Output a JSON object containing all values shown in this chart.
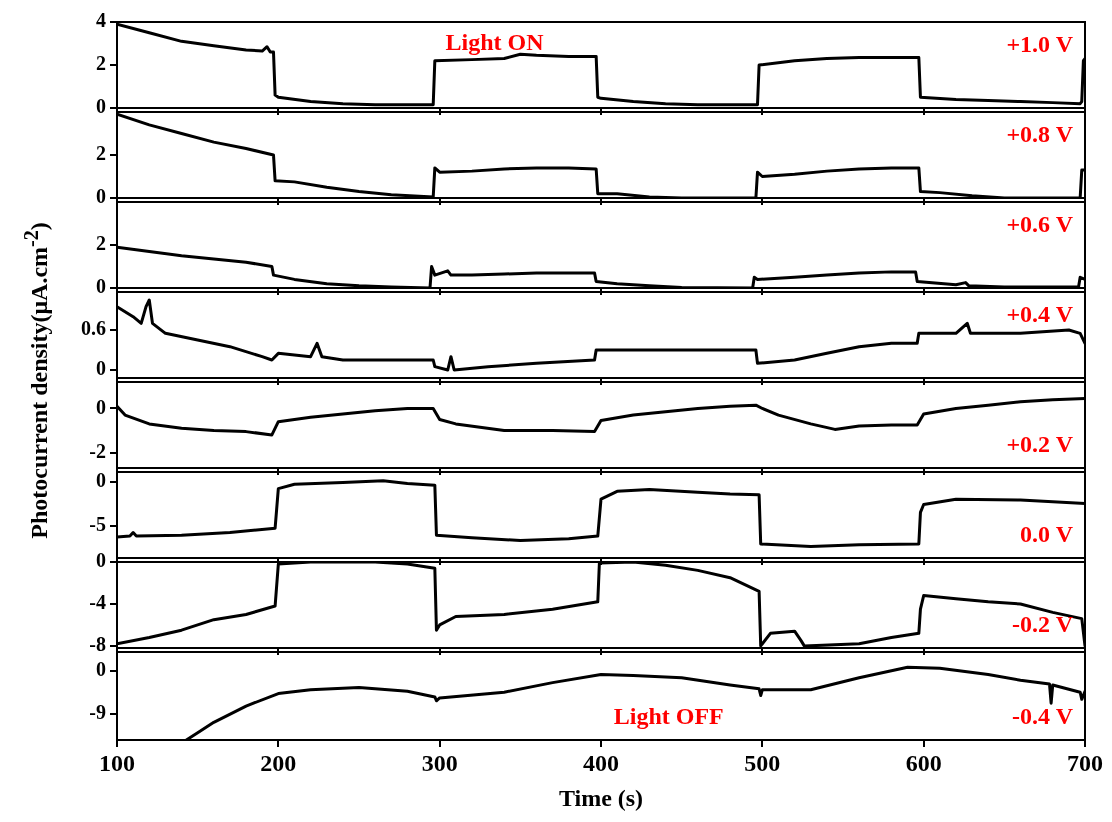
{
  "chart_data": [
    {
      "type": "line",
      "ylabel": "Photocurrent density(μA.cm$^{-2}$)",
      "annotations": [
        "Light ON",
        "+1.0 V"
      ],
      "xlim": [
        100,
        700
      ],
      "xticks": [
        100,
        200,
        300,
        400,
        500,
        600,
        700
      ],
      "ylim": [
        0,
        4
      ],
      "yticks": [
        0,
        2,
        4
      ],
      "tick_labels": "y",
      "marker": "none",
      "line_style": "solid",
      "series": [
        {
          "color": "#000000",
          "x": [
            100,
            120,
            140,
            160,
            180,
            190,
            193,
            195,
            197,
            198,
            200,
            220,
            240,
            260,
            280,
            296,
            297,
            320,
            340,
            350,
            360,
            380,
            397,
            398,
            400,
            420,
            440,
            460,
            480,
            497,
            498,
            520,
            540,
            560,
            580,
            597,
            598,
            620,
            640,
            660,
            680,
            697,
            698,
            699,
            700
          ],
          "values": [
            3.9,
            3.5,
            3.1,
            2.9,
            2.7,
            2.65,
            2.85,
            2.6,
            2.6,
            0.6,
            0.5,
            0.3,
            0.2,
            0.15,
            0.15,
            0.15,
            2.2,
            2.25,
            2.3,
            2.5,
            2.45,
            2.4,
            2.4,
            0.5,
            0.45,
            0.3,
            0.2,
            0.15,
            0.15,
            0.15,
            2.0,
            2.2,
            2.3,
            2.35,
            2.35,
            2.35,
            0.5,
            0.4,
            0.35,
            0.3,
            0.25,
            0.2,
            0.3,
            2.2,
            2.3
          ]
        }
      ]
    },
    {
      "type": "line",
      "annotations": [
        "+0.8 V"
      ],
      "xlim": [
        100,
        700
      ],
      "xticks": [
        100,
        200,
        300,
        400,
        500,
        600,
        700
      ],
      "ylim": [
        0,
        4
      ],
      "yticks": [
        0,
        2
      ],
      "tick_labels": "y",
      "marker": "none",
      "line_style": "solid",
      "series": [
        {
          "color": "#000000",
          "x": [
            100,
            120,
            140,
            160,
            180,
            197,
            198,
            210,
            230,
            250,
            270,
            296,
            297,
            300,
            320,
            340,
            360,
            380,
            397,
            398,
            410,
            430,
            450,
            496,
            497,
            500,
            520,
            540,
            560,
            580,
            597,
            598,
            610,
            630,
            650,
            697,
            698,
            700
          ],
          "values": [
            3.9,
            3.4,
            3.0,
            2.6,
            2.3,
            2.0,
            0.8,
            0.75,
            0.5,
            0.3,
            0.15,
            0.05,
            1.4,
            1.2,
            1.25,
            1.35,
            1.4,
            1.4,
            1.35,
            0.2,
            0.2,
            0.05,
            0,
            0,
            1.2,
            1.0,
            1.1,
            1.25,
            1.35,
            1.4,
            1.4,
            0.3,
            0.25,
            0.1,
            0,
            0,
            1.3,
            1.3
          ]
        }
      ]
    },
    {
      "type": "line",
      "annotations": [
        "+0.6 V"
      ],
      "xlim": [
        100,
        700
      ],
      "xticks": [
        100,
        200,
        300,
        400,
        500,
        600,
        700
      ],
      "ylim": [
        0,
        4
      ],
      "yticks": [
        0,
        2
      ],
      "tick_labels": "y",
      "marker": "none",
      "line_style": "solid",
      "series": [
        {
          "color": "#000000",
          "x": [
            100,
            120,
            140,
            160,
            180,
            196,
            197,
            210,
            230,
            250,
            270,
            294,
            295,
            297,
            305,
            307,
            320,
            340,
            360,
            380,
            396,
            397,
            410,
            430,
            450,
            494,
            495,
            497,
            520,
            540,
            560,
            580,
            595,
            596,
            620,
            626,
            628,
            650,
            696,
            697,
            700
          ],
          "values": [
            1.9,
            1.7,
            1.5,
            1.35,
            1.2,
            1.0,
            0.6,
            0.4,
            0.2,
            0.1,
            0.05,
            0,
            1.0,
            0.6,
            0.8,
            0.6,
            0.6,
            0.65,
            0.7,
            0.7,
            0.7,
            0.3,
            0.2,
            0.1,
            0.02,
            0,
            0.5,
            0.4,
            0.5,
            0.6,
            0.7,
            0.75,
            0.75,
            0.3,
            0.15,
            0.25,
            0.1,
            0.05,
            0.05,
            0.5,
            0.4
          ]
        }
      ]
    },
    {
      "type": "line",
      "annotations": [
        "+0.4 V"
      ],
      "xlim": [
        100,
        700
      ],
      "xticks": [
        100,
        200,
        300,
        400,
        500,
        600,
        700
      ],
      "ylim": [
        -0.12,
        1.17
      ],
      "yticks": [
        0,
        0.6
      ],
      "tick_labels": "y",
      "marker": "none",
      "line_style": "solid",
      "series": [
        {
          "color": "#000000",
          "x": [
            100,
            110,
            115,
            118,
            120,
            122,
            130,
            150,
            170,
            190,
            196,
            200,
            220,
            224,
            227,
            240,
            260,
            280,
            296,
            297,
            305,
            307,
            309,
            330,
            360,
            396,
            397,
            420,
            450,
            480,
            496,
            497,
            520,
            540,
            560,
            580,
            596,
            597,
            620,
            627,
            629,
            660,
            690,
            697,
            700
          ],
          "values": [
            0.95,
            0.8,
            0.7,
            0.95,
            1.05,
            0.7,
            0.55,
            0.45,
            0.35,
            0.2,
            0.15,
            0.25,
            0.2,
            0.4,
            0.2,
            0.15,
            0.15,
            0.15,
            0.15,
            0.05,
            0.0,
            0.2,
            0.0,
            0.05,
            0.1,
            0.15,
            0.3,
            0.3,
            0.3,
            0.3,
            0.3,
            0.1,
            0.15,
            0.25,
            0.35,
            0.4,
            0.4,
            0.55,
            0.55,
            0.7,
            0.55,
            0.55,
            0.6,
            0.55,
            0.4
          ]
        }
      ]
    },
    {
      "type": "line",
      "annotations": [
        "+0.2 V"
      ],
      "xlim": [
        100,
        700
      ],
      "xticks": [
        100,
        200,
        300,
        400,
        500,
        600,
        700
      ],
      "ylim": [
        -2.7,
        1.2
      ],
      "yticks": [
        -2,
        0
      ],
      "tick_labels": "y",
      "marker": "none",
      "line_style": "solid",
      "series": [
        {
          "color": "#000000",
          "x": [
            100,
            105,
            120,
            140,
            160,
            180,
            196,
            200,
            220,
            240,
            260,
            280,
            296,
            300,
            310,
            340,
            370,
            396,
            400,
            420,
            440,
            460,
            480,
            496,
            500,
            510,
            530,
            545,
            560,
            580,
            596,
            600,
            620,
            640,
            660,
            680,
            700
          ],
          "values": [
            0.1,
            -0.3,
            -0.7,
            -0.9,
            -1.0,
            -1.05,
            -1.2,
            -0.6,
            -0.4,
            -0.25,
            -0.1,
            0,
            0,
            -0.5,
            -0.7,
            -1.0,
            -1.0,
            -1.05,
            -0.55,
            -0.3,
            -0.15,
            0,
            0.1,
            0.15,
            0,
            -0.3,
            -0.7,
            -0.95,
            -0.8,
            -0.75,
            -0.75,
            -0.25,
            0,
            0.15,
            0.3,
            0.4,
            0.45
          ]
        }
      ]
    },
    {
      "type": "line",
      "annotations": [
        "0.0 V"
      ],
      "xlim": [
        100,
        700
      ],
      "xticks": [
        100,
        200,
        300,
        400,
        500,
        600,
        700
      ],
      "ylim": [
        -8.7,
        1.1
      ],
      "yticks": [
        -5,
        0
      ],
      "tick_labels": "y",
      "marker": "none",
      "line_style": "solid",
      "series": [
        {
          "color": "#000000",
          "x": [
            100,
            108,
            110,
            112,
            140,
            170,
            198,
            200,
            210,
            240,
            265,
            280,
            297,
            298,
            320,
            350,
            380,
            398,
            400,
            410,
            430,
            460,
            480,
            498,
            499,
            530,
            560,
            597,
            598,
            600,
            620,
            660,
            700
          ],
          "values": [
            -6.3,
            -6.2,
            -5.8,
            -6.2,
            -6.1,
            -5.8,
            -5.3,
            -0.8,
            -0.3,
            -0.1,
            0.1,
            -0.2,
            -0.4,
            -6.1,
            -6.4,
            -6.7,
            -6.5,
            -6.2,
            -2.0,
            -1.1,
            -0.9,
            -1.2,
            -1.4,
            -1.5,
            -7.1,
            -7.4,
            -7.2,
            -7.1,
            -3.5,
            -2.6,
            -2.0,
            -2.1,
            -2.5
          ]
        }
      ]
    },
    {
      "type": "line",
      "annotations": [
        "-0.2 V"
      ],
      "xlim": [
        100,
        700
      ],
      "xticks": [
        100,
        200,
        300,
        400,
        500,
        600,
        700
      ],
      "ylim": [
        -8.2,
        0
      ],
      "yticks": [
        -8,
        -4,
        0
      ],
      "tick_labels": "y",
      "marker": "none",
      "line_style": "solid",
      "series": [
        {
          "color": "#000000",
          "x": [
            100,
            120,
            140,
            160,
            180,
            198,
            200,
            220,
            260,
            280,
            297,
            298,
            300,
            310,
            340,
            370,
            398,
            399,
            420,
            440,
            460,
            480,
            498,
            499,
            505,
            520,
            524,
            526,
            560,
            580,
            597,
            598,
            600,
            620,
            640,
            660,
            680,
            698,
            700
          ],
          "values": [
            -7.8,
            -7.2,
            -6.5,
            -5.5,
            -5.0,
            -4.2,
            -0.2,
            0,
            0,
            -0.2,
            -0.6,
            -6.5,
            -6.0,
            -5.2,
            -5.0,
            -4.5,
            -3.8,
            -0.1,
            0,
            -0.3,
            -0.8,
            -1.5,
            -2.8,
            -8.0,
            -6.8,
            -6.6,
            -7.5,
            -8.0,
            -7.8,
            -7.2,
            -6.8,
            -4.5,
            -3.2,
            -3.5,
            -3.8,
            -4.0,
            -4.8,
            -5.4,
            -8.0
          ]
        }
      ]
    },
    {
      "type": "line",
      "xlabel": "Time (s)",
      "annotations": [
        "Light OFF",
        "-0.4 V"
      ],
      "xlim": [
        100,
        700
      ],
      "xticks": [
        100,
        200,
        300,
        400,
        500,
        600,
        700
      ],
      "ylim": [
        -14.5,
        3.9
      ],
      "yticks": [
        -9,
        0
      ],
      "marker": "none",
      "line_style": "solid",
      "series": [
        {
          "color": "#000000",
          "x": [
            143,
            150,
            160,
            180,
            200,
            220,
            250,
            280,
            297,
            298,
            300,
            340,
            370,
            400,
            420,
            450,
            480,
            498,
            499,
            500,
            530,
            560,
            590,
            610,
            640,
            660,
            678,
            679,
            680,
            697,
            698,
            700
          ],
          "values": [
            -14.5,
            -13,
            -10.8,
            -7.4,
            -4.8,
            -4.0,
            -3.5,
            -4.3,
            -5.5,
            -6.3,
            -5.7,
            -4.5,
            -2.5,
            -0.8,
            -1.0,
            -1.5,
            -3.0,
            -3.8,
            -5.2,
            -4.0,
            -4.0,
            -1.5,
            0.7,
            0.5,
            -0.8,
            -2.0,
            -2.8,
            -6.8,
            -3.0,
            -4.5,
            -6.0,
            -4.3
          ]
        }
      ]
    }
  ]
}
